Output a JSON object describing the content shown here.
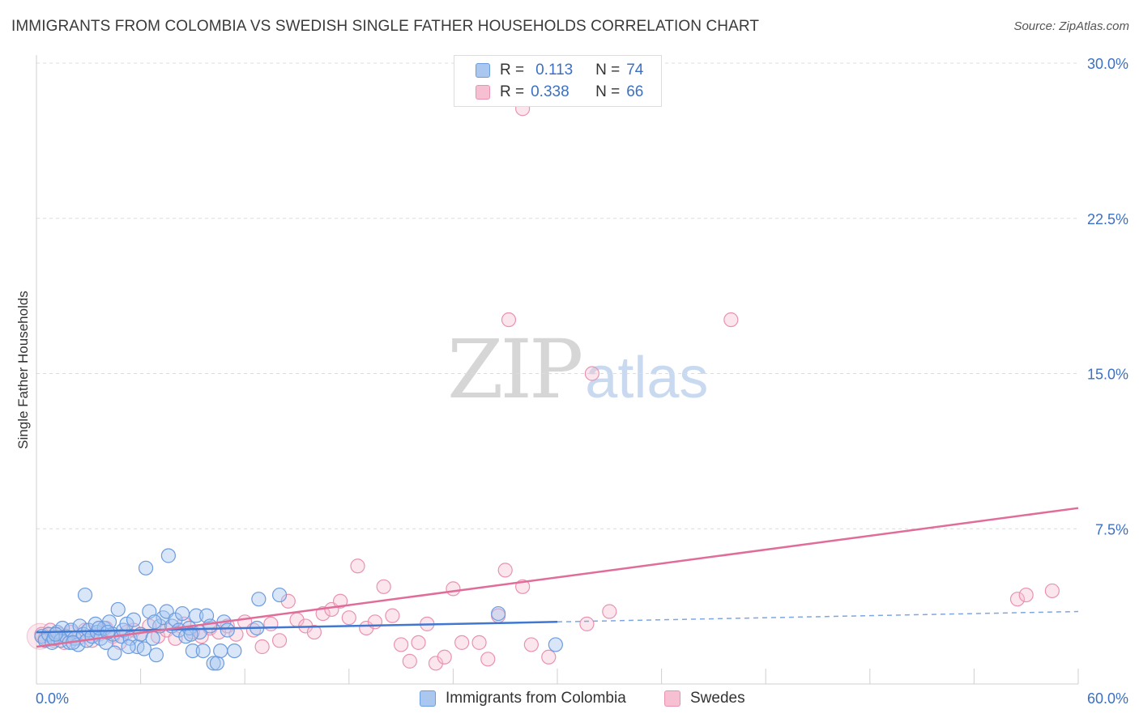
{
  "header": {
    "title": "IMMIGRANTS FROM COLOMBIA VS SWEDISH SINGLE FATHER HOUSEHOLDS CORRELATION CHART",
    "source": "Source: ZipAtlas.com"
  },
  "watermark": {
    "zip": "ZIP",
    "atlas": "atlas"
  },
  "legend": {
    "r_label": "R =",
    "n_label": "N =",
    "rows": [
      {
        "r": "0.113",
        "n": "74",
        "color": "#a9c7ef",
        "border": "#6b9ce0"
      },
      {
        "r": "0.338",
        "n": "66",
        "color": "#f6c0d2",
        "border": "#e992b0"
      }
    ]
  },
  "bottom_legend": [
    {
      "label": "Immigrants from Colombia",
      "color": "#a9c7ef",
      "border": "#6b9ce0"
    },
    {
      "label": "Swedes",
      "color": "#f6c0d2",
      "border": "#e992b0"
    }
  ],
  "chart_data": {
    "type": "scatter",
    "title": "IMMIGRANTS FROM COLOMBIA VS SWEDISH SINGLE FATHER HOUSEHOLDS CORRELATION CHART",
    "xlabel": "",
    "ylabel": "Single Father Households",
    "xlim": [
      0,
      60
    ],
    "ylim": [
      0,
      30
    ],
    "x_tick_labels": [
      "0.0%",
      "60.0%"
    ],
    "y_ticks": [
      7.5,
      15.0,
      22.5,
      30.0
    ],
    "y_tick_labels": [
      "7.5%",
      "15.0%",
      "22.5%",
      "30.0%"
    ],
    "grid": "horizontal dashed",
    "legend_position": "top-center",
    "series": [
      {
        "name": "Immigrants from Colombia",
        "color": "#6b9ce0",
        "fill": "rgba(169,199,239,0.45)",
        "trend": {
          "x0": 0,
          "y0": 2.5,
          "x1": 30,
          "y1": 3.0,
          "dashed_to_x": 60,
          "dashed_to_y": 3.5
        },
        "points": [
          [
            0.3,
            2.3
          ],
          [
            0.5,
            2.1
          ],
          [
            0.7,
            2.4
          ],
          [
            0.9,
            2.0
          ],
          [
            1.0,
            2.2
          ],
          [
            1.2,
            2.5
          ],
          [
            1.4,
            2.1
          ],
          [
            1.5,
            2.7
          ],
          [
            1.7,
            2.3
          ],
          [
            1.9,
            2.0
          ],
          [
            2.0,
            2.6
          ],
          [
            2.2,
            2.2
          ],
          [
            2.4,
            1.9
          ],
          [
            2.5,
            2.8
          ],
          [
            2.7,
            2.4
          ],
          [
            2.9,
            2.1
          ],
          [
            3.0,
            2.6
          ],
          [
            3.2,
            2.3
          ],
          [
            3.4,
            2.9
          ],
          [
            3.5,
            2.5
          ],
          [
            3.7,
            2.2
          ],
          [
            3.9,
            2.7
          ],
          [
            4.0,
            2.0
          ],
          [
            4.2,
            3.0
          ],
          [
            4.4,
            2.4
          ],
          [
            4.5,
            1.5
          ],
          [
            4.7,
            3.6
          ],
          [
            4.9,
            2.3
          ],
          [
            5.0,
            2.6
          ],
          [
            5.2,
            2.9
          ],
          [
            5.4,
            2.2
          ],
          [
            5.6,
            3.1
          ],
          [
            5.8,
            1.8
          ],
          [
            6.0,
            2.4
          ],
          [
            6.2,
            1.7
          ],
          [
            6.3,
            5.6
          ],
          [
            6.5,
            3.5
          ],
          [
            6.7,
            2.2
          ],
          [
            6.9,
            1.4
          ],
          [
            7.1,
            2.8
          ],
          [
            7.3,
            3.2
          ],
          [
            7.5,
            3.5
          ],
          [
            7.6,
            6.2
          ],
          [
            7.8,
            2.8
          ],
          [
            8.0,
            3.1
          ],
          [
            8.2,
            2.6
          ],
          [
            8.4,
            3.4
          ],
          [
            8.6,
            2.3
          ],
          [
            8.8,
            2.7
          ],
          [
            9.0,
            1.6
          ],
          [
            9.2,
            3.3
          ],
          [
            9.4,
            2.5
          ],
          [
            9.6,
            1.6
          ],
          [
            9.8,
            3.3
          ],
          [
            10.0,
            2.8
          ],
          [
            10.2,
            1.0
          ],
          [
            10.4,
            1.0
          ],
          [
            10.6,
            1.6
          ],
          [
            10.8,
            3.0
          ],
          [
            11.0,
            2.6
          ],
          [
            11.4,
            1.6
          ],
          [
            12.7,
            2.7
          ],
          [
            12.8,
            4.1
          ],
          [
            14.0,
            4.3
          ],
          [
            2.8,
            4.3
          ],
          [
            3.6,
            2.7
          ],
          [
            4.1,
            2.5
          ],
          [
            5.3,
            1.8
          ],
          [
            6.8,
            3.0
          ],
          [
            8.9,
            2.4
          ],
          [
            2.1,
            2.0
          ],
          [
            1.1,
            2.4
          ],
          [
            26.6,
            3.4
          ],
          [
            29.9,
            1.9
          ]
        ]
      },
      {
        "name": "Swedes",
        "color": "#e992b0",
        "fill": "rgba(246,192,210,0.40)",
        "trend": {
          "x0": 0,
          "y0": 1.8,
          "x1": 60,
          "y1": 8.5
        },
        "points": [
          [
            0.3,
            2.4
          ],
          [
            0.5,
            2.2
          ],
          [
            0.8,
            2.6
          ],
          [
            1.0,
            2.1
          ],
          [
            1.3,
            2.4
          ],
          [
            1.6,
            2.0
          ],
          [
            2.0,
            2.5
          ],
          [
            2.4,
            2.2
          ],
          [
            2.8,
            2.6
          ],
          [
            3.2,
            2.1
          ],
          [
            3.6,
            2.4
          ],
          [
            4.0,
            2.7
          ],
          [
            4.4,
            2.3
          ],
          [
            4.8,
            2.0
          ],
          [
            5.2,
            2.5
          ],
          [
            5.6,
            2.6
          ],
          [
            6.0,
            2.4
          ],
          [
            6.5,
            2.8
          ],
          [
            7.0,
            2.3
          ],
          [
            7.5,
            2.6
          ],
          [
            8.0,
            2.2
          ],
          [
            8.5,
            2.9
          ],
          [
            9.0,
            2.5
          ],
          [
            9.5,
            2.3
          ],
          [
            10.0,
            2.7
          ],
          [
            10.5,
            2.5
          ],
          [
            11.0,
            2.8
          ],
          [
            11.5,
            2.4
          ],
          [
            12.0,
            3.0
          ],
          [
            12.5,
            2.6
          ],
          [
            13.0,
            1.8
          ],
          [
            13.5,
            2.9
          ],
          [
            14.0,
            2.1
          ],
          [
            14.5,
            4.0
          ],
          [
            15.0,
            3.1
          ],
          [
            15.5,
            2.8
          ],
          [
            16.0,
            2.5
          ],
          [
            16.5,
            3.4
          ],
          [
            17.0,
            3.6
          ],
          [
            17.5,
            4.0
          ],
          [
            18.0,
            3.2
          ],
          [
            18.5,
            5.7
          ],
          [
            19.0,
            2.7
          ],
          [
            19.5,
            3.0
          ],
          [
            20.0,
            4.7
          ],
          [
            20.5,
            3.3
          ],
          [
            21.0,
            1.9
          ],
          [
            21.5,
            1.1
          ],
          [
            22.0,
            2.0
          ],
          [
            22.5,
            2.9
          ],
          [
            23.0,
            1.0
          ],
          [
            23.5,
            1.3
          ],
          [
            24.0,
            4.6
          ],
          [
            24.5,
            2.0
          ],
          [
            25.5,
            2.0
          ],
          [
            26.0,
            1.2
          ],
          [
            26.6,
            3.3
          ],
          [
            27.0,
            5.5
          ],
          [
            27.2,
            17.6
          ],
          [
            28.0,
            4.7
          ],
          [
            28.5,
            1.9
          ],
          [
            29.5,
            1.3
          ],
          [
            31.7,
            2.9
          ],
          [
            32.0,
            15.0
          ],
          [
            33.0,
            3.5
          ],
          [
            40.0,
            17.6
          ]
        ]
      }
    ],
    "extra_points_swedes": [
      [
        56.5,
        4.1
      ],
      [
        57.0,
        4.3
      ],
      [
        58.5,
        4.5
      ],
      [
        28.0,
        27.8
      ]
    ]
  }
}
